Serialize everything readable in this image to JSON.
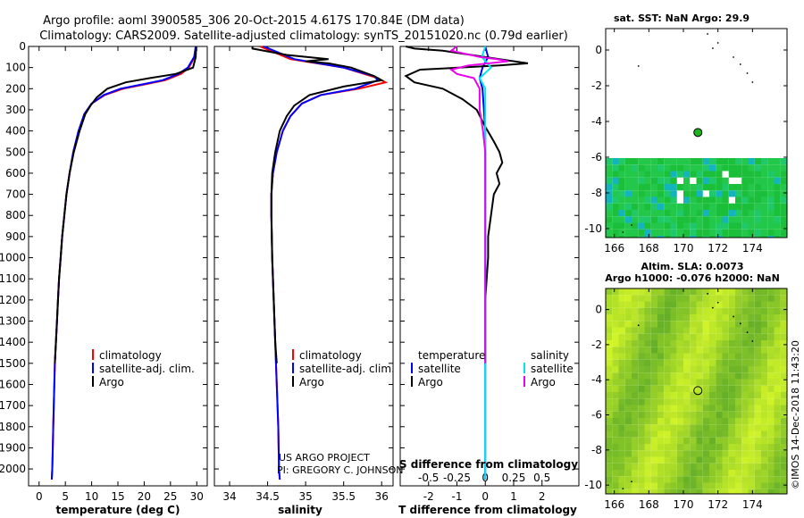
{
  "title": {
    "line1": "Argo profile: aoml 3900585_306 20-Oct-2015 4.617S 170.84E (DM data)",
    "line2": "Climatology: CARS2009. Satellite-adjusted climatology: synTS_20151020.nc (0.79d earlier)"
  },
  "colors": {
    "climatology": "#ff0000",
    "satellite": "#0000ff",
    "argo": "#000000",
    "sal_satellite": "#00e5ee",
    "sal_argo": "#ee00ee"
  },
  "chart_data": [
    {
      "type": "line",
      "name": "temperature-profile",
      "xlabel": "temperature (deg C)",
      "ylabel": "",
      "xlim": [
        -2,
        32
      ],
      "ylim": [
        2080,
        0
      ],
      "xticks": [
        0,
        5,
        10,
        15,
        20,
        25,
        30
      ],
      "yticks": [
        0,
        100,
        200,
        300,
        400,
        500,
        600,
        700,
        800,
        900,
        1000,
        1100,
        1200,
        1300,
        1400,
        1500,
        1600,
        1700,
        1800,
        1900,
        2000
      ],
      "legend": [
        "climatology",
        "satellite-adj. clim.",
        "Argo"
      ],
      "series": [
        {
          "name": "climatology",
          "color": "#ff0000",
          "points": [
            [
              29.8,
              0
            ],
            [
              29.6,
              50
            ],
            [
              28.5,
              100
            ],
            [
              27,
              130
            ],
            [
              24,
              160
            ],
            [
              20,
              180
            ],
            [
              16,
              200
            ],
            [
              12.5,
              230
            ],
            [
              10,
              270
            ],
            [
              8.6,
              320
            ],
            [
              7.5,
              400
            ],
            [
              6.5,
              500
            ],
            [
              5.8,
              600
            ],
            [
              5.2,
              700
            ],
            [
              4.8,
              800
            ],
            [
              4.4,
              900
            ],
            [
              4.1,
              1000
            ],
            [
              3.8,
              1100
            ],
            [
              3.6,
              1200
            ],
            [
              3.4,
              1300
            ],
            [
              3.2,
              1400
            ],
            [
              3.0,
              1500
            ],
            [
              2.9,
              1600
            ],
            [
              2.8,
              1700
            ],
            [
              2.7,
              1800
            ],
            [
              2.6,
              1900
            ],
            [
              2.5,
              2000
            ],
            [
              2.4,
              2050
            ]
          ]
        },
        {
          "name": "satellite-adj. clim.",
          "color": "#0000ff",
          "points": [
            [
              29.8,
              0
            ],
            [
              29.5,
              50
            ],
            [
              28.3,
              100
            ],
            [
              26.5,
              130
            ],
            [
              23.5,
              160
            ],
            [
              19.5,
              180
            ],
            [
              15.5,
              200
            ],
            [
              12.3,
              230
            ],
            [
              10,
              270
            ],
            [
              8.6,
              320
            ],
            [
              7.5,
              400
            ],
            [
              6.5,
              500
            ],
            [
              5.8,
              600
            ],
            [
              5.2,
              700
            ],
            [
              4.8,
              800
            ],
            [
              4.4,
              900
            ],
            [
              4.1,
              1000
            ],
            [
              3.8,
              1100
            ],
            [
              3.6,
              1200
            ],
            [
              3.4,
              1300
            ],
            [
              3.2,
              1400
            ],
            [
              3.0,
              1500
            ],
            [
              2.9,
              1600
            ],
            [
              2.8,
              1700
            ],
            [
              2.7,
              1800
            ],
            [
              2.6,
              1900
            ],
            [
              2.5,
              2000
            ],
            [
              2.4,
              2050
            ]
          ]
        },
        {
          "name": "Argo",
          "color": "#000000",
          "points": [
            [
              29.9,
              0
            ],
            [
              29.8,
              50
            ],
            [
              29.3,
              100
            ],
            [
              26,
              130
            ],
            [
              21,
              150
            ],
            [
              16.5,
              170
            ],
            [
              13,
              200
            ],
            [
              11,
              240
            ],
            [
              9.8,
              280
            ],
            [
              8.8,
              320
            ],
            [
              7.7,
              400
            ],
            [
              6.6,
              500
            ],
            [
              5.8,
              600
            ],
            [
              5.2,
              700
            ],
            [
              4.8,
              800
            ],
            [
              4.4,
              900
            ],
            [
              4.1,
              1000
            ],
            [
              3.8,
              1100
            ],
            [
              3.6,
              1200
            ],
            [
              3.4,
              1300
            ],
            [
              3.2,
              1400
            ],
            [
              3.0,
              1500
            ]
          ]
        }
      ]
    },
    {
      "type": "line",
      "name": "salinity-profile",
      "xlabel": "salinity",
      "xlim": [
        33.8,
        36.15
      ],
      "ylim": [
        2080,
        0
      ],
      "xticks": [
        34,
        34.5,
        35,
        35.5,
        36
      ],
      "legend": [
        "climatology",
        "satellite-adj. clim.",
        "Argo"
      ],
      "series": [
        {
          "name": "climatology",
          "color": "#ff0000",
          "points": [
            [
              34.4,
              0
            ],
            [
              34.8,
              60
            ],
            [
              35.5,
              100
            ],
            [
              35.95,
              150
            ],
            [
              36.05,
              170
            ],
            [
              35.7,
              200
            ],
            [
              35.2,
              230
            ],
            [
              34.95,
              270
            ],
            [
              34.8,
              330
            ],
            [
              34.7,
              400
            ],
            [
              34.62,
              500
            ],
            [
              34.57,
              600
            ],
            [
              34.55,
              700
            ],
            [
              34.55,
              800
            ],
            [
              34.56,
              1000
            ],
            [
              34.58,
              1200
            ],
            [
              34.6,
              1400
            ],
            [
              34.62,
              1600
            ],
            [
              34.64,
              1800
            ],
            [
              34.65,
              2000
            ],
            [
              34.66,
              2050
            ]
          ]
        },
        {
          "name": "satellite-adj. clim.",
          "color": "#0000ff",
          "points": [
            [
              34.45,
              0
            ],
            [
              34.85,
              60
            ],
            [
              35.5,
              100
            ],
            [
              35.9,
              140
            ],
            [
              35.95,
              160
            ],
            [
              35.65,
              200
            ],
            [
              35.2,
              230
            ],
            [
              34.95,
              270
            ],
            [
              34.8,
              330
            ],
            [
              34.7,
              400
            ],
            [
              34.62,
              500
            ],
            [
              34.57,
              600
            ],
            [
              34.55,
              700
            ],
            [
              34.55,
              800
            ],
            [
              34.56,
              1000
            ],
            [
              34.58,
              1200
            ],
            [
              34.6,
              1400
            ],
            [
              34.62,
              1600
            ],
            [
              34.64,
              1800
            ],
            [
              34.65,
              2000
            ],
            [
              34.66,
              2050
            ]
          ]
        },
        {
          "name": "Argo",
          "color": "#000000",
          "points": [
            [
              34.3,
              0
            ],
            [
              34.3,
              10
            ],
            [
              34.75,
              40
            ],
            [
              35.3,
              60
            ],
            [
              35.0,
              70
            ],
            [
              35.3,
              80
            ],
            [
              35.6,
              100
            ],
            [
              35.9,
              140
            ],
            [
              36.0,
              160
            ],
            [
              35.5,
              190
            ],
            [
              35.05,
              230
            ],
            [
              34.85,
              280
            ],
            [
              34.75,
              330
            ],
            [
              34.66,
              400
            ],
            [
              34.6,
              500
            ],
            [
              34.56,
              600
            ],
            [
              34.55,
              700
            ],
            [
              34.55,
              800
            ],
            [
              34.56,
              1000
            ],
            [
              34.58,
              1200
            ],
            [
              34.6,
              1400
            ],
            [
              34.62,
              1500
            ]
          ]
        }
      ]
    },
    {
      "type": "line",
      "name": "difference-profile",
      "xlabel": "T difference from climatology",
      "xlabel_top": "S difference from climatology",
      "xlim": [
        -3,
        3.3
      ],
      "top_xlim": [
        -0.75,
        0.825
      ],
      "ylim": [
        2080,
        0
      ],
      "xticks": [
        -2,
        -1,
        0,
        1,
        2
      ],
      "top_xticks": [
        -0.5,
        -0.25,
        0,
        0.25,
        0.5
      ],
      "top_xtick_labels": [
        "-0.5",
        "-0.25",
        "0",
        "0.25",
        "0.5"
      ],
      "legend_left_title": "temperature",
      "legend_right_title": "salinity",
      "legend": [
        "satellite",
        "Argo"
      ],
      "series": [
        {
          "name": "T satellite",
          "color": "#0000ff",
          "points": [
            [
              0,
              0
            ],
            [
              0.1,
              50
            ],
            [
              -0.1,
              100
            ],
            [
              -0.2,
              150
            ],
            [
              -0.1,
              200
            ],
            [
              -0.05,
              300
            ],
            [
              0,
              400
            ],
            [
              0,
              600
            ],
            [
              0,
              800
            ],
            [
              0,
              1000
            ],
            [
              0,
              1500
            ],
            [
              0,
              2000
            ],
            [
              0,
              2050
            ]
          ]
        },
        {
          "name": "T Argo",
          "color": "#000000",
          "points": [
            [
              -2.8,
              0
            ],
            [
              -2.5,
              10
            ],
            [
              -1.5,
              20
            ],
            [
              -0.5,
              40
            ],
            [
              0.5,
              60
            ],
            [
              1.5,
              80
            ],
            [
              0.5,
              90
            ],
            [
              -2.3,
              110
            ],
            [
              -2.8,
              140
            ],
            [
              -2.5,
              170
            ],
            [
              -1.5,
              200
            ],
            [
              -0.8,
              250
            ],
            [
              -0.3,
              300
            ],
            [
              0,
              380
            ],
            [
              0.3,
              450
            ],
            [
              0.5,
              500
            ],
            [
              0.6,
              550
            ],
            [
              0.4,
              600
            ],
            [
              0.5,
              650
            ],
            [
              0.3,
              700
            ],
            [
              0.2,
              800
            ],
            [
              0.1,
              900
            ],
            [
              0.1,
              1000
            ],
            [
              0,
              1200
            ],
            [
              0,
              1400
            ],
            [
              0,
              1500
            ]
          ]
        },
        {
          "name": "S satellite",
          "color": "#00e5ee",
          "points": [
            [
              0,
              0
            ],
            [
              -0.03,
              50
            ],
            [
              0.05,
              100
            ],
            [
              -0.05,
              150
            ],
            [
              0,
              200
            ],
            [
              0,
              300
            ],
            [
              0,
              500
            ],
            [
              0,
              1000
            ],
            [
              0,
              1500
            ],
            [
              0,
              2000
            ],
            [
              0,
              2050
            ]
          ]
        },
        {
          "name": "S Argo",
          "color": "#ee00ee",
          "points": [
            [
              -0.25,
              0
            ],
            [
              -0.3,
              20
            ],
            [
              -0.05,
              50
            ],
            [
              0.1,
              60
            ],
            [
              0.2,
              70
            ],
            [
              -0.15,
              90
            ],
            [
              -0.3,
              110
            ],
            [
              -0.25,
              130
            ],
            [
              -0.1,
              150
            ],
            [
              -0.05,
              200
            ],
            [
              -0.05,
              300
            ],
            [
              -0.02,
              400
            ],
            [
              0,
              500
            ],
            [
              0,
              1000
            ],
            [
              0,
              1500
            ]
          ]
        }
      ]
    },
    {
      "type": "heatmap",
      "name": "sst-map",
      "title": "sat. SST: NaN Argo: 29.9",
      "xlim": [
        165.5,
        176
      ],
      "ylim": [
        -10.5,
        1.2
      ],
      "xticks": [
        166,
        168,
        170,
        172,
        174
      ],
      "yticks": [
        0,
        -2,
        -4,
        -6,
        -8,
        -10
      ],
      "argo_location": [
        170.84,
        -4.617
      ]
    },
    {
      "type": "heatmap",
      "name": "sla-map",
      "title": "Altim. SLA: 0.0073",
      "subtitle": "Argo h1000: -0.076 h2000: NaN",
      "xlim": [
        165.5,
        176
      ],
      "ylim": [
        -10.5,
        1.2
      ],
      "xticks": [
        166,
        168,
        170,
        172,
        174
      ],
      "yticks": [
        0,
        -2,
        -4,
        -6,
        -8,
        -10
      ],
      "argo_location": [
        170.84,
        -4.617
      ]
    }
  ],
  "annotations": {
    "project_line1": "US ARGO PROJECT",
    "project_line2": "PI: GREGORY C. JOHNSON",
    "watermark": "©IMOS 14-Dec-2018 11:43:20"
  }
}
